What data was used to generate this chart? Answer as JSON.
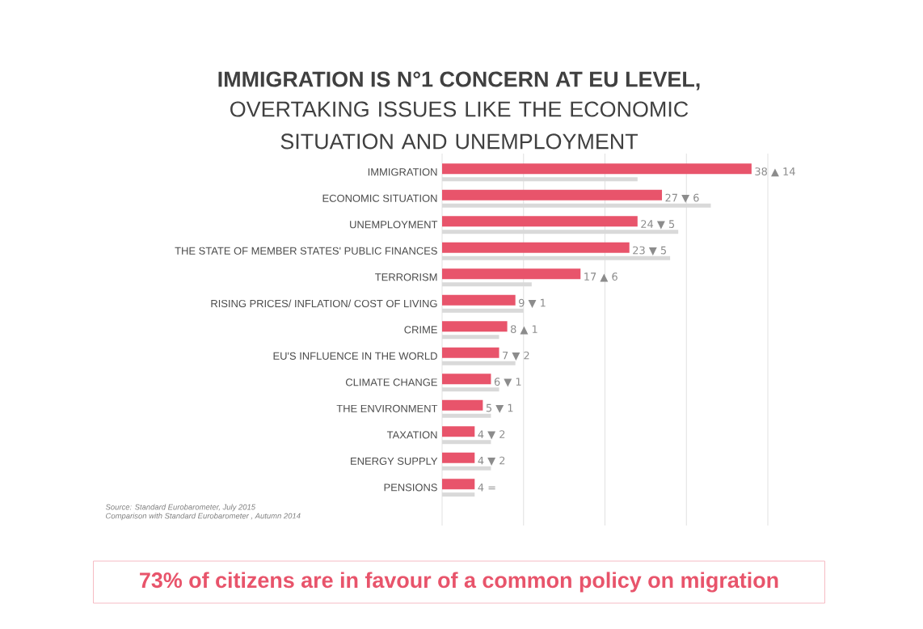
{
  "chart_data": {
    "type": "bar",
    "orientation": "horizontal",
    "title": "IMMIGRATION IS N°1 CONCERN AT EU LEVEL,",
    "subtitle": "OVERTAKING ISSUES LIKE THE ECONOMIC SITUATION AND UNEMPLOYMENT",
    "categories": [
      "IMMIGRATION",
      "ECONOMIC SITUATION",
      "UNEMPLOYMENT",
      "THE STATE OF MEMBER STATES' PUBLIC FINANCES",
      "TERRORISM",
      "RISING PRICES/ INFLATION/ COST OF LIVING",
      "CRIME",
      "EU'S INFLUENCE IN THE WORLD",
      "CLIMATE CHANGE",
      "THE ENVIRONMENT",
      "TAXATION",
      "ENERGY SUPPLY",
      "PENSIONS"
    ],
    "series": [
      {
        "color": "#e8546b",
        "values": [
          38,
          27,
          24,
          23,
          17,
          9,
          8,
          7,
          6,
          5,
          4,
          4,
          4
        ],
        "value_labels": [
          "38 ▲ 14",
          "27 ▼ 6",
          "24 ▼ 5",
          "23 ▼ 5",
          "17 ▲ 6",
          "9 ▼ 1",
          "8 ▲ 1",
          "7 ▼ 2",
          "6 ▼ 1",
          "5 ▼ 1",
          "4 ▼ 2",
          "4 ▼ 2",
          "4 ="
        ]
      },
      {
        "color": "#d9d9d9",
        "values": [
          24,
          33,
          29,
          28,
          11,
          10,
          7,
          9,
          7,
          6,
          6,
          6,
          4
        ]
      }
    ],
    "xlim": [
      0,
      40
    ],
    "xticks": [
      {
        "value": 0,
        "label": null
      },
      {
        "value": 10,
        "label": null
      },
      {
        "value": 20,
        "label": null
      },
      {
        "value": 30,
        "label": null
      },
      {
        "value": 40,
        "label": null
      }
    ],
    "grid": "x",
    "tick_labels": "y",
    "annotations": [
      "Source: Standard Eurobarometer, July 2015",
      "Comparison with Standard Eurobarometer , Autumn 2014",
      "73% of citizens are in favour of a common policy on migration"
    ]
  }
}
